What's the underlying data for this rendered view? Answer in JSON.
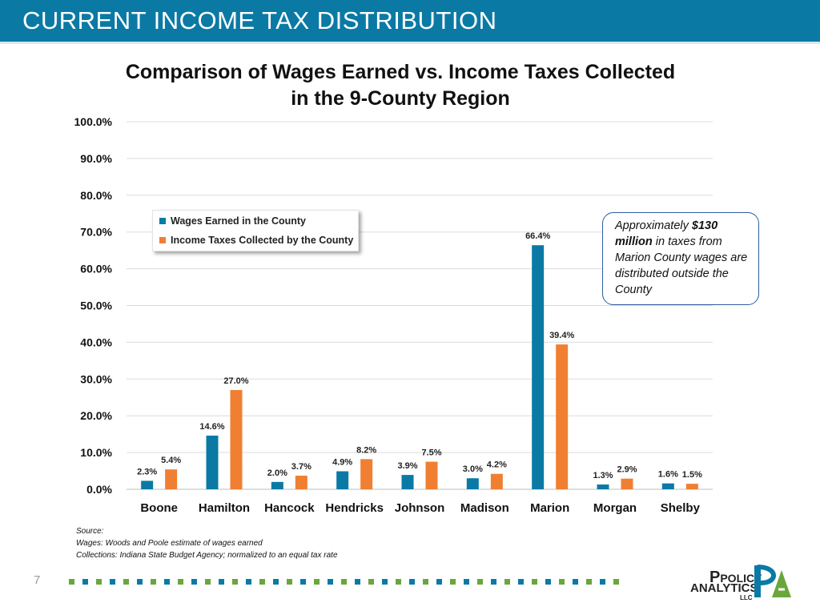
{
  "header": {
    "title": "CURRENT INCOME TAX DISTRIBUTION"
  },
  "chart_title": {
    "line1": "Comparison of Wages Earned vs. Income Taxes Collected",
    "line2": "in the 9-County Region"
  },
  "chart_data": {
    "type": "bar",
    "title": "Comparison of Wages Earned vs. Income Taxes Collected in the 9-County Region",
    "categories": [
      "Boone",
      "Hamilton",
      "Hancock",
      "Hendricks",
      "Johnson",
      "Madison",
      "Marion",
      "Morgan",
      "Shelby"
    ],
    "series": [
      {
        "name": "Wages Earned in the County",
        "color": "#0a7aa5",
        "values": [
          2.3,
          14.6,
          2.0,
          4.9,
          3.9,
          3.0,
          66.4,
          1.3,
          1.6
        ],
        "labels": [
          "2.3%",
          "14.6%",
          "2.0%",
          "4.9%",
          "3.9%",
          "3.0%",
          "66.4%",
          "1.3%",
          "1.6%"
        ]
      },
      {
        "name": "Income Taxes Collected by the County",
        "color": "#f07f32",
        "values": [
          5.4,
          27.0,
          3.7,
          8.2,
          7.5,
          4.2,
          39.4,
          2.9,
          1.5
        ],
        "labels": [
          "5.4%",
          "27.0%",
          "3.7%",
          "8.2%",
          "7.5%",
          "4.2%",
          "39.4%",
          "2.9%",
          "1.5%"
        ]
      }
    ],
    "yticks": [
      "0.0%",
      "10.0%",
      "20.0%",
      "30.0%",
      "40.0%",
      "50.0%",
      "60.0%",
      "70.0%",
      "80.0%",
      "90.0%",
      "100.0%"
    ],
    "ylim": [
      0,
      100
    ],
    "grid": true,
    "legend_position": "top-left"
  },
  "callout": {
    "part1": "Approximately ",
    "bold": "$130 million",
    "part2": " in taxes from Marion County wages are distributed outside the County"
  },
  "source": {
    "line1": "Source:",
    "line2": "Wages: Woods and Poole estimate of wages earned",
    "line3": "Collections: Indiana State Budget Agency; normalized to an equal tax rate"
  },
  "page_number": "7",
  "logo": {
    "line1": "Policy",
    "line2": "Analytics",
    "line3": "LLC"
  },
  "colors": {
    "header": "#0a7aa5",
    "wages": "#0a7aa5",
    "taxes": "#f07f32",
    "dot_green": "#6aa63b",
    "dot_blue": "#0a7aa5"
  }
}
